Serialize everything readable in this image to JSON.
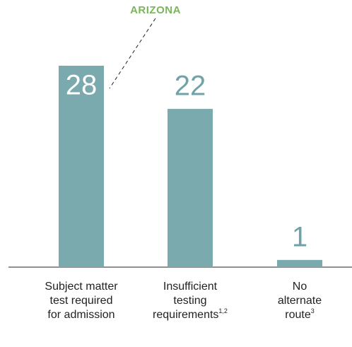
{
  "chart_data": {
    "type": "bar",
    "categories": [
      "Subject matter test required for admission",
      "Insufficient testing requirements",
      "No alternate route"
    ],
    "footnotes": [
      null,
      "1,2",
      "3"
    ],
    "values": [
      28,
      22,
      1
    ],
    "color": "#7aa9ae",
    "label_color": "#6fa3a8",
    "annotation": "ARIZONA",
    "annotation_color": "#7ab55c"
  }
}
